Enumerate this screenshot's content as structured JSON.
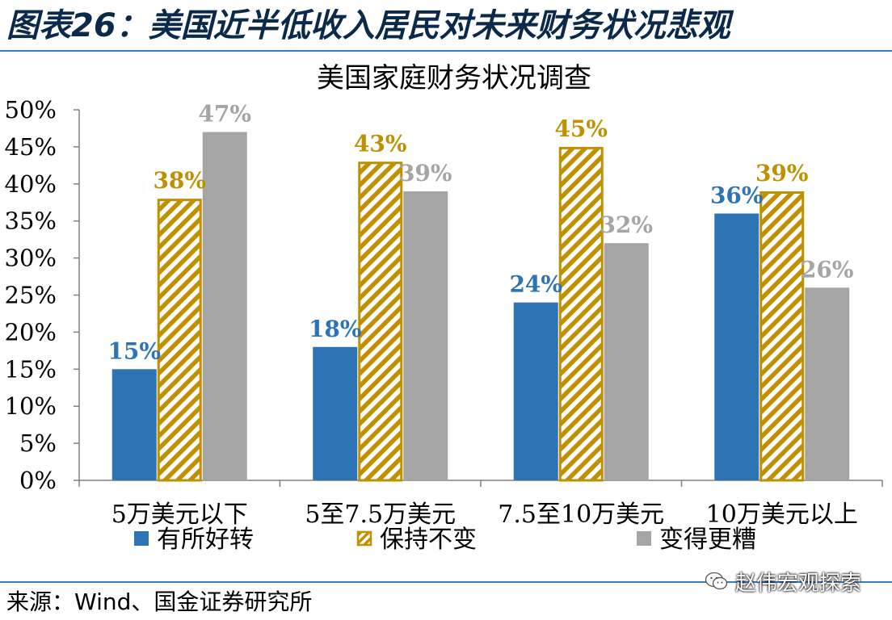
{
  "figure_title": "图表26：美国近半低收入居民对未来财务状况悲观",
  "source": "来源：Wind、国金证券研究所",
  "watermark": "赵伟宏观探索",
  "watermark_icon": "wechat-icon",
  "colors": {
    "blue": "#2e74b5",
    "gold": "#bf9000",
    "gray": "#a5a5a5",
    "title_rule": "#3a7bc8"
  },
  "chart_data": {
    "type": "bar",
    "title": "美国家庭财务状况调查",
    "categories": [
      "5万美元以下",
      "5至7.5万美元",
      "7.5至10万美元",
      "10万美元以上"
    ],
    "series": [
      {
        "name": "有所好转",
        "values": [
          15,
          18,
          24,
          36
        ],
        "labels": [
          "15%",
          "18%",
          "24%",
          "36%"
        ],
        "color": "#2e74b5",
        "pattern": "solid"
      },
      {
        "name": "保持不变",
        "values": [
          38,
          43,
          45,
          39
        ],
        "labels": [
          "38%",
          "43%",
          "45%",
          "39%"
        ],
        "color": "#bf9000",
        "pattern": "diagonal-hatch"
      },
      {
        "name": "变得更糟",
        "values": [
          47,
          39,
          32,
          26
        ],
        "labels": [
          "47%",
          "39%",
          "32%",
          "26%"
        ],
        "color": "#a5a5a5",
        "pattern": "solid"
      }
    ],
    "ylim": [
      0,
      50
    ],
    "yticks": [
      "0%",
      "5%",
      "10%",
      "15%",
      "20%",
      "25%",
      "30%",
      "35%",
      "40%",
      "45%",
      "50%"
    ],
    "grid": false,
    "legend_position": "bottom"
  }
}
